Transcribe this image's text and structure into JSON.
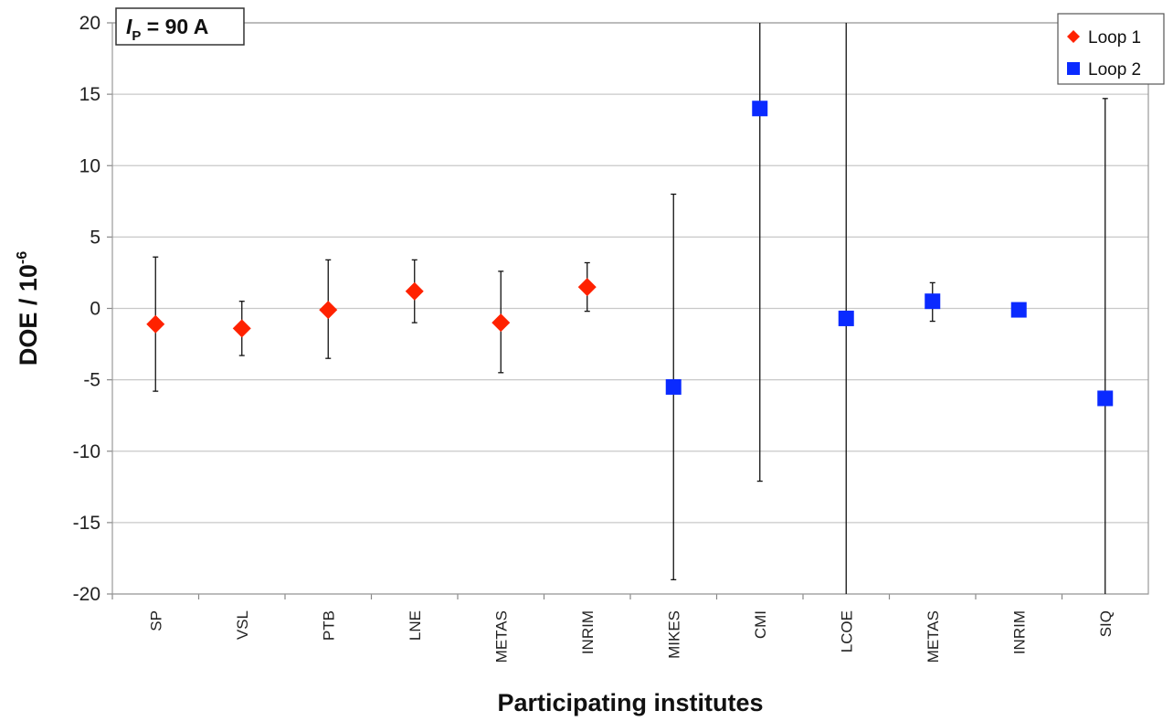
{
  "chart_data": {
    "type": "scatter",
    "annotation": {
      "symbol": "I",
      "subscript": "P",
      "rest": " = 90 A"
    },
    "ylabel": {
      "main": "DOE / 10",
      "exponent": "-6"
    },
    "xlabel": "Participating institutes",
    "ylim": [
      -20,
      20
    ],
    "yticks": [
      20,
      15,
      10,
      5,
      0,
      -5,
      -10,
      -15,
      -20
    ],
    "grid": "horizontal",
    "legend_position": "top-right",
    "categories": [
      "SP",
      "VSL",
      "PTB",
      "LNE",
      "METAS",
      "INRIM",
      "MIKES",
      "CMI",
      "LCOE",
      "METAS",
      "INRIM",
      "SIQ"
    ],
    "series": [
      {
        "name": "Loop 1",
        "marker": "diamond",
        "color": "#ff2200",
        "points": [
          {
            "x": "SP",
            "y": -1.1,
            "low": -5.8,
            "high": 3.6
          },
          {
            "x": "VSL",
            "y": -1.4,
            "low": -3.3,
            "high": 0.5
          },
          {
            "x": "PTB",
            "y": -0.1,
            "low": -3.5,
            "high": 3.4
          },
          {
            "x": "LNE",
            "y": 1.2,
            "low": -1.0,
            "high": 3.4
          },
          {
            "x": "METAS",
            "y": -1.0,
            "low": -4.5,
            "high": 2.6
          },
          {
            "x": "INRIM",
            "y": 1.5,
            "low": -0.2,
            "high": 3.2
          }
        ]
      },
      {
        "name": "Loop 2",
        "marker": "square",
        "color": "#0a2aff",
        "points": [
          {
            "x": "MIKES",
            "y": -5.5,
            "low": -19.0,
            "high": 8.0
          },
          {
            "x": "CMI",
            "y": 14.0,
            "low": -12.1,
            "high": 20.0
          },
          {
            "x": "LCOE",
            "y": -0.7,
            "low": -20.0,
            "high": 20.0
          },
          {
            "x": "METAS",
            "y": 0.5,
            "low": -0.9,
            "high": 1.8
          },
          {
            "x": "INRIM",
            "y": -0.1,
            "low": -0.1,
            "high": -0.1
          },
          {
            "x": "SIQ",
            "y": -6.3,
            "low": -20.0,
            "high": 14.7
          }
        ]
      }
    ]
  }
}
